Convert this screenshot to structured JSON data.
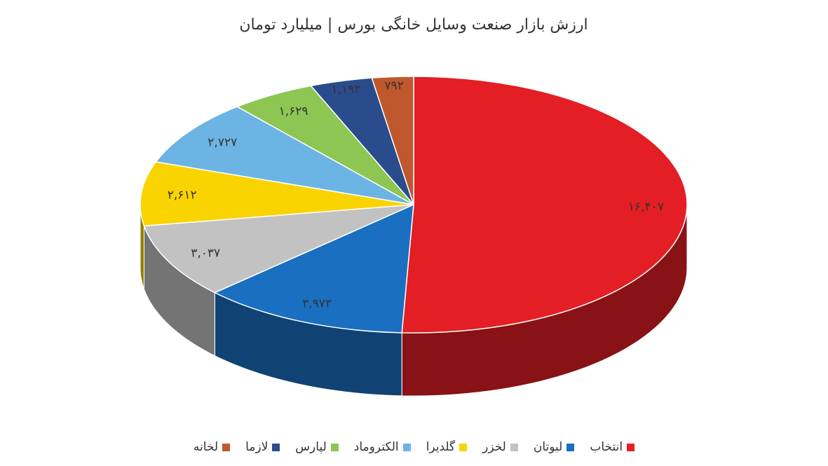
{
  "chart_data": {
    "type": "pie3d",
    "title": "ارزش بازار صنعت وسایل خانگی بورس | میلیارد تومان",
    "categories": [
      "انتخاب",
      "لبوتان",
      "لخزر",
      "گلدیرا",
      "الکتروماد",
      "لپارس",
      "لازما",
      "لخانه"
    ],
    "values": [
      16407,
      3973,
      3037,
      2612,
      2727,
      1629,
      1193,
      792
    ],
    "value_labels": [
      "۱۶,۴۰۷",
      "۳,۹۷۳",
      "۳,۰۳۷",
      "۲,۶۱۲",
      "۲,۷۲۷",
      "۱,۶۲۹",
      "۱,۱۹۳",
      "۷۹۲"
    ],
    "colors": [
      "#e31e24",
      "#1a6fc0",
      "#c2c2c2",
      "#f9d400",
      "#6cb4e4",
      "#8dc653",
      "#2b4c8c",
      "#c0582d"
    ],
    "legend": "bottom"
  }
}
